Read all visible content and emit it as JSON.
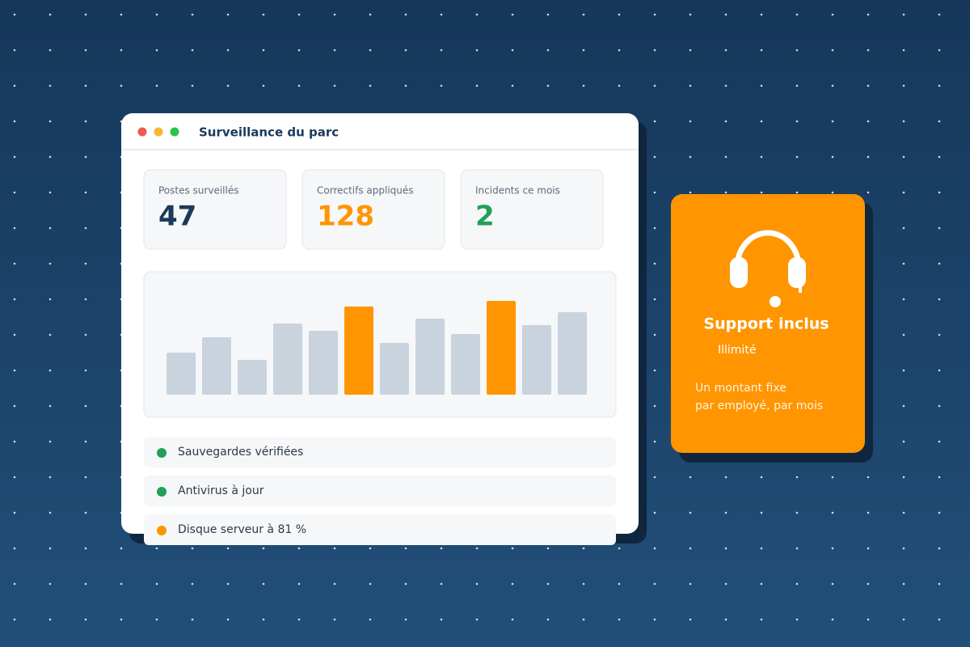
{
  "window": {
    "title": "Surveillance du parc"
  },
  "stats": [
    {
      "label": "Postes surveillés",
      "value": 47,
      "color": "#1b3a5c"
    },
    {
      "label": "Correctifs appliqués",
      "value": 128,
      "color": "#ff9500"
    },
    {
      "label": "Incidents ce mois",
      "value": 2,
      "color": "#22a05a"
    }
  ],
  "chart_data": {
    "type": "bar",
    "values": [
      52,
      71,
      43,
      88,
      79,
      109,
      64,
      94,
      75,
      116,
      86,
      102
    ],
    "colors": [
      "#c8d3de",
      "#c8d3de",
      "#c8d3de",
      "#c8d3de",
      "#c8d3de",
      "#ff9500",
      "#c8d3de",
      "#c8d3de",
      "#c8d3de",
      "#ff9500",
      "#c8d3de",
      "#c8d3de"
    ]
  },
  "status": [
    {
      "label": "Sauvegardes vérifiées",
      "color": "#22a05a"
    },
    {
      "label": "Antivirus à jour",
      "color": "#22a05a"
    },
    {
      "label": "Disque serveur à 81 %",
      "color": "#ff9500"
    }
  ],
  "support": {
    "title": "Support inclus",
    "subtitle": "Illimité",
    "description": [
      "Un montant fixe",
      "par employé, par mois"
    ]
  }
}
